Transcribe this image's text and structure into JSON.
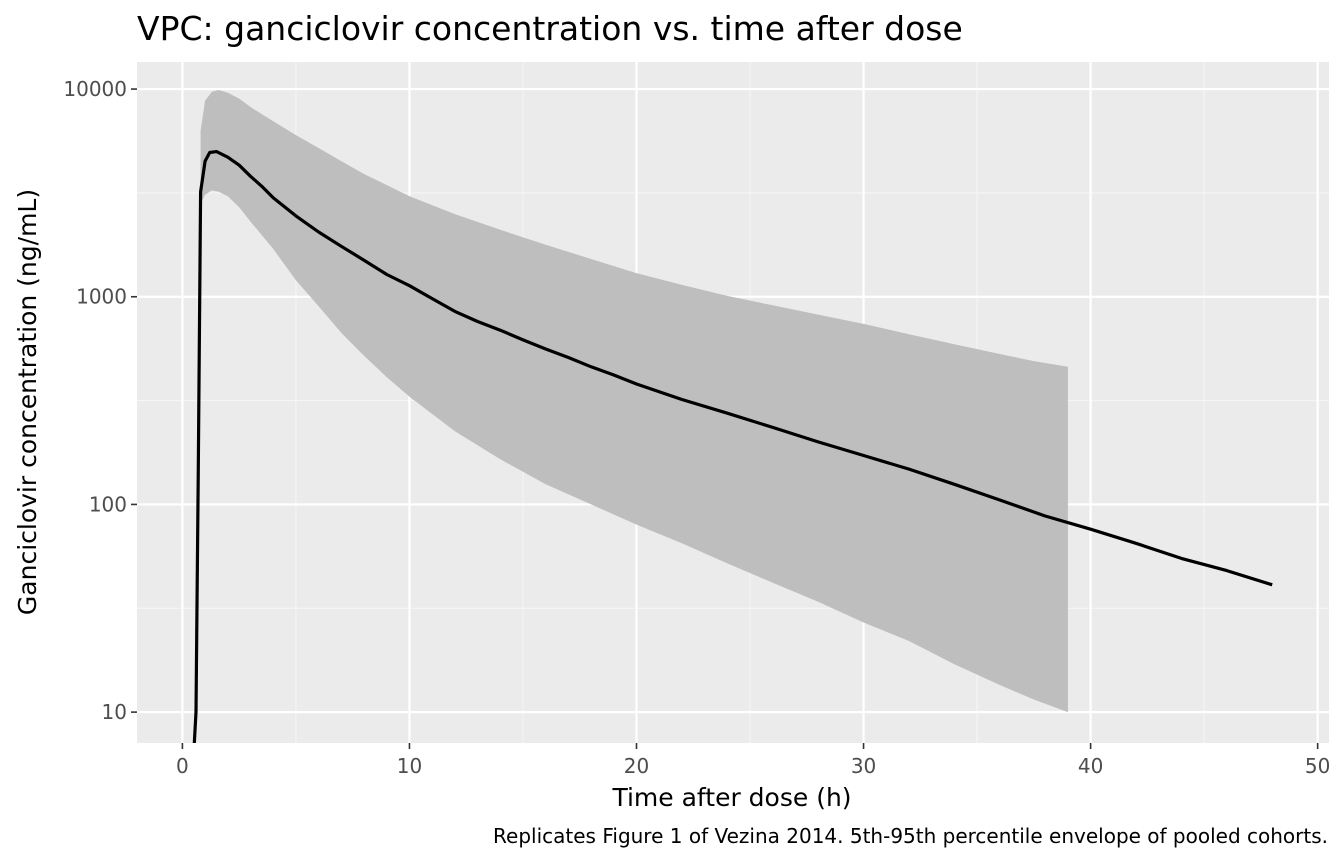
{
  "chart_data": {
    "type": "line",
    "title": "VPC: ganciclovir concentration vs. time after dose",
    "xlabel": "Time after dose (h)",
    "ylabel": "Ganciclovir concentration (ng/mL)",
    "caption": "Replicates Figure 1 of Vezina 2014. 5th-95th percentile envelope of pooled cohorts.",
    "x_scale": "linear",
    "y_scale": "log10",
    "xlim": [
      -2,
      50.5
    ],
    "ylim": [
      7.1,
      13500
    ],
    "x_ticks": [
      0,
      10,
      20,
      30,
      40,
      50
    ],
    "x_tick_labels": [
      "0",
      "10",
      "20",
      "30",
      "40",
      "50"
    ],
    "y_ticks": [
      10,
      100,
      1000,
      10000
    ],
    "y_tick_labels": [
      "10",
      "100",
      "1000",
      "10000"
    ],
    "grid": true,
    "legend": "none",
    "colors": {
      "panel_background": "#ebebeb",
      "grid_major": "#ffffff",
      "grid_minor": "#f5f5f5",
      "ribbon": "#bebebe",
      "median_line": "#000000"
    },
    "series": [
      {
        "kind": "line",
        "x": [
          0.45,
          0.6,
          0.7,
          0.8,
          1.0,
          1.2,
          1.5,
          2.0,
          2.5,
          3.0,
          3.5,
          4.0,
          5.0,
          6.0,
          7.0,
          8.0,
          9.0,
          10.0,
          11.0,
          12.0,
          13.0,
          14.0,
          15.0,
          16.0,
          17.0,
          18.0,
          19.0,
          20.0,
          22.0,
          24.0,
          26.0,
          28.0,
          30.0,
          32.0,
          34.0,
          36.0,
          38.0,
          40.0,
          42.0,
          44.0,
          46.0,
          48.0
        ],
        "y": [
          5,
          10,
          150,
          3200,
          4500,
          4950,
          5000,
          4700,
          4300,
          3800,
          3400,
          3000,
          2450,
          2050,
          1750,
          1500,
          1280,
          1130,
          980,
          850,
          760,
          690,
          620,
          560,
          510,
          460,
          420,
          380,
          320,
          275,
          235,
          200,
          172,
          148,
          125,
          105,
          88,
          76,
          65,
          55,
          48,
          41
        ]
      },
      {
        "kind": "ribbon",
        "x": [
          0.8,
          1.0,
          1.3,
          1.6,
          2.0,
          2.5,
          3.0,
          4.0,
          5.0,
          6.0,
          7.0,
          8.0,
          9.0,
          10.0,
          12.0,
          14.0,
          16.0,
          18.0,
          20.0,
          22.0,
          24.0,
          26.0,
          28.0,
          30.0,
          32.0,
          34.0,
          36.0,
          37.5,
          39.0
        ],
        "y_low": [
          2800,
          3100,
          3250,
          3200,
          3050,
          2700,
          2300,
          1700,
          1200,
          900,
          670,
          520,
          410,
          330,
          225,
          165,
          125,
          100,
          80,
          65,
          52,
          42,
          34,
          27,
          22,
          17,
          13.5,
          11.5,
          10
        ],
        "y_high": [
          6300,
          8800,
          9700,
          9900,
          9600,
          9000,
          8200,
          7000,
          6000,
          5200,
          4500,
          3900,
          3450,
          3050,
          2500,
          2100,
          1780,
          1520,
          1300,
          1140,
          1010,
          910,
          820,
          740,
          660,
          590,
          530,
          490,
          460
        ]
      }
    ]
  }
}
